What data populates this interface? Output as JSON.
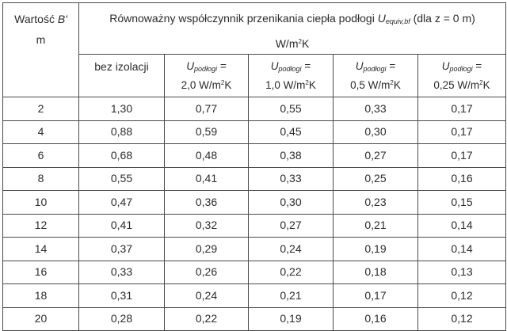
{
  "header": {
    "b_label": "Wartość ",
    "b_symbol": "B'",
    "b_unit": "m",
    "group_text_pre": "Równoważny współczynnik przenikania ciepła podłogi ",
    "group_symbol": "U",
    "group_subscript": "equiv,bf",
    "group_text_post": " (dla z = 0 m)",
    "group_unit_pre": "W/m",
    "group_unit_sup": "2",
    "group_unit_post": "K",
    "columns": [
      {
        "label": "bez izolacji"
      },
      {
        "symbol": "U",
        "subscript": "podłogi",
        "eq": " =",
        "value": "2,0 W/m",
        "sup": "2",
        "unit_post": "K"
      },
      {
        "symbol": "U",
        "subscript": "podłogi",
        "eq": " =",
        "value": "1,0 W/m",
        "sup": "2",
        "unit_post": "K"
      },
      {
        "symbol": "U",
        "subscript": "podłogi",
        "eq": " =",
        "value": "0,5 W/m",
        "sup": "2",
        "unit_post": "K"
      },
      {
        "symbol": "U",
        "subscript": "podłogi",
        "eq": " =",
        "value": "0,25 W/m",
        "sup": "2",
        "unit_post": "K"
      }
    ]
  },
  "rows": [
    [
      "2",
      "1,30",
      "0,77",
      "0,55",
      "0,33",
      "0,17"
    ],
    [
      "4",
      "0,88",
      "0,59",
      "0,45",
      "0,30",
      "0,17"
    ],
    [
      "6",
      "0,68",
      "0,48",
      "0,38",
      "0,27",
      "0,17"
    ],
    [
      "8",
      "0,55",
      "0,41",
      "0,33",
      "0,25",
      "0,16"
    ],
    [
      "10",
      "0,47",
      "0,36",
      "0,30",
      "0,23",
      "0,15"
    ],
    [
      "12",
      "0,41",
      "0,32",
      "0,27",
      "0,21",
      "0,14"
    ],
    [
      "14",
      "0,37",
      "0,29",
      "0,24",
      "0,19",
      "0,14"
    ],
    [
      "16",
      "0,33",
      "0,26",
      "0,22",
      "0,18",
      "0,13"
    ],
    [
      "18",
      "0,31",
      "0,24",
      "0,21",
      "0,17",
      "0,12"
    ],
    [
      "20",
      "0,28",
      "0,22",
      "0,19",
      "0,16",
      "0,12"
    ]
  ]
}
